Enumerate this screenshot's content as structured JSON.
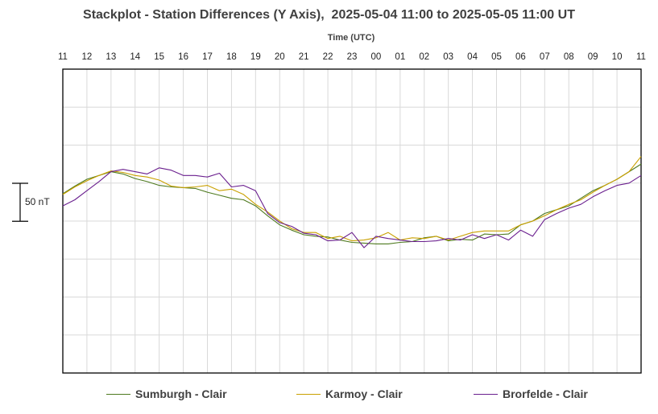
{
  "chart_data": {
    "type": "line",
    "title": "Stackplot - Station Differences (Y Axis),  2025-05-04 11:00 to 2025-05-05 11:00 UT",
    "xlabel": "Time (UTC)",
    "ylabel": "",
    "x_ticks": [
      "11",
      "12",
      "13",
      "14",
      "15",
      "16",
      "17",
      "18",
      "19",
      "20",
      "21",
      "22",
      "23",
      "00",
      "01",
      "02",
      "03",
      "04",
      "05",
      "06",
      "07",
      "08",
      "09",
      "10",
      "11"
    ],
    "x_range_hours": [
      0,
      24
    ],
    "scale_bar": {
      "label": "50 nT",
      "value_nT": 50
    },
    "ylim_nT": [
      -250,
      150
    ],
    "grid": true,
    "legend_position": "bottom",
    "colors": {
      "sumburgh": "#4e7a1f",
      "karmoy": "#c9a000",
      "brorfelde": "#6a1f8e",
      "grid": "#d9d9d9",
      "frame": "#000000"
    },
    "series": [
      {
        "name": "Sumburgh - Clair",
        "color": "#4e7a1f",
        "x": [
          0,
          0.5,
          1,
          1.5,
          2,
          2.5,
          3,
          3.5,
          4,
          4.5,
          5,
          5.5,
          6,
          6.5,
          7,
          7.5,
          8,
          8.5,
          9,
          9.5,
          10,
          10.5,
          11,
          11.5,
          12,
          12.5,
          13,
          13.5,
          14,
          14.5,
          15,
          15.5,
          16,
          16.5,
          17,
          17.5,
          18,
          18.5,
          19,
          19.5,
          20,
          20.5,
          21,
          21.5,
          22,
          22.5,
          23,
          23.5,
          24
        ],
        "values": [
          -14,
          -4,
          5,
          10,
          15,
          12,
          6,
          2,
          -3,
          -5,
          -6,
          -7,
          -12,
          -16,
          -20,
          -22,
          -30,
          -43,
          -55,
          -62,
          -68,
          -70,
          -71,
          -75,
          -78,
          -79,
          -80,
          -80,
          -78,
          -77,
          -72,
          -70,
          -76,
          -74,
          -75,
          -67,
          -68,
          -67,
          -55,
          -50,
          -40,
          -35,
          -30,
          -20,
          -10,
          -3,
          5,
          15,
          25
        ]
      },
      {
        "name": "Karmoy - Clair",
        "color": "#c9a000",
        "x": [
          0,
          0.5,
          1,
          1.5,
          2,
          2.5,
          3,
          3.5,
          4,
          4.5,
          5,
          5.5,
          6,
          6.5,
          7,
          7.5,
          8,
          8.5,
          9,
          9.5,
          10,
          10.5,
          11,
          11.5,
          12,
          12.5,
          13,
          13.5,
          14,
          14.5,
          15,
          15.5,
          16,
          16.5,
          17,
          17.5,
          18,
          18.5,
          19,
          19.5,
          20,
          20.5,
          21,
          21.5,
          22,
          22.5,
          23,
          23.5,
          24
        ],
        "values": [
          -15,
          -5,
          3,
          10,
          16,
          14,
          10,
          8,
          4,
          -4,
          -6,
          -5,
          -3,
          -10,
          -8,
          -15,
          -28,
          -38,
          -50,
          -60,
          -65,
          -65,
          -73,
          -70,
          -76,
          -75,
          -72,
          -65,
          -75,
          -72,
          -73,
          -70,
          -75,
          -70,
          -65,
          -63,
          -63,
          -63,
          -55,
          -50,
          -43,
          -35,
          -28,
          -22,
          -12,
          -3,
          5,
          15,
          35
        ]
      },
      {
        "name": "Brorfelde - Clair",
        "color": "#6a1f8e",
        "x": [
          0,
          0.5,
          1,
          1.5,
          2,
          2.5,
          3,
          3.5,
          4,
          4.5,
          5,
          5.5,
          6,
          6.5,
          7,
          7.5,
          8,
          8.5,
          9,
          9.5,
          10,
          10.5,
          11,
          11.5,
          12,
          12.5,
          13,
          13.5,
          14,
          14.5,
          15,
          15.5,
          16,
          16.5,
          17,
          17.5,
          18,
          18.5,
          19,
          19.5,
          20,
          20.5,
          21,
          21.5,
          22,
          22.5,
          23,
          23.5,
          24
        ],
        "values": [
          -30,
          -22,
          -10,
          2,
          15,
          18,
          15,
          12,
          20,
          17,
          10,
          10,
          8,
          13,
          -5,
          -3,
          -10,
          -40,
          -52,
          -57,
          -66,
          -68,
          -76,
          -75,
          -65,
          -85,
          -70,
          -73,
          -75,
          -77,
          -77,
          -76,
          -73,
          -75,
          -68,
          -73,
          -68,
          -75,
          -62,
          -70,
          -48,
          -40,
          -33,
          -28,
          -18,
          -10,
          -3,
          0,
          10
        ]
      }
    ]
  }
}
